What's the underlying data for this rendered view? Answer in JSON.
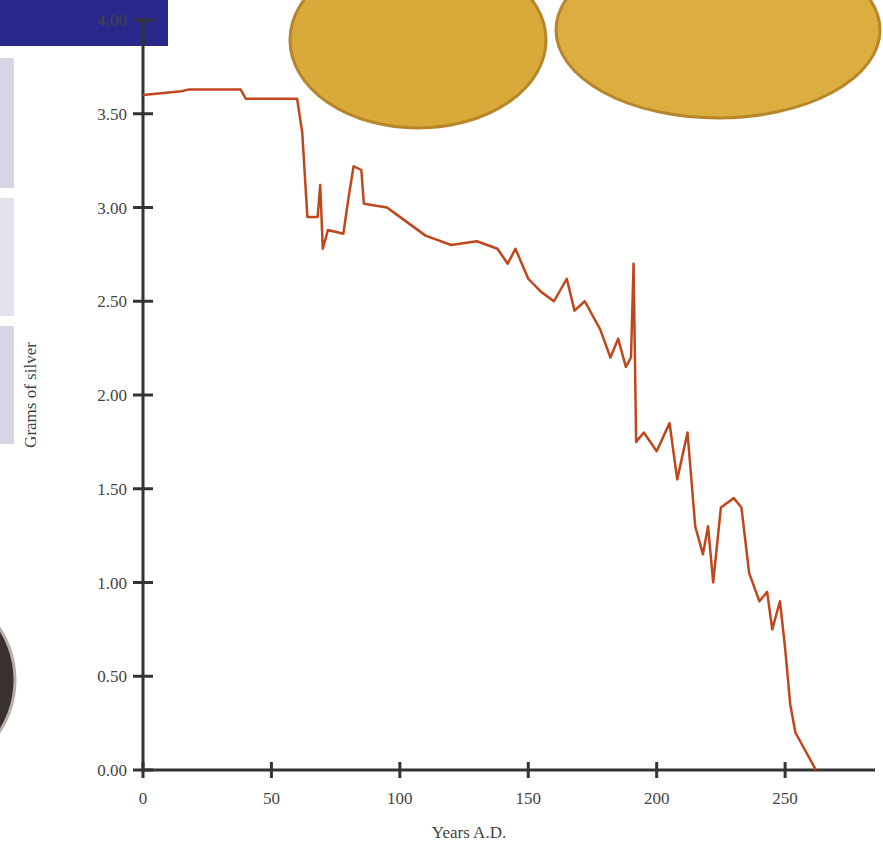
{
  "chart_data": {
    "type": "line",
    "x_label": "Years A.D.",
    "y_label": "Grams of silver",
    "x": [
      0,
      15,
      18,
      38,
      40,
      60,
      62,
      64,
      68,
      69,
      70,
      72,
      78,
      80,
      82,
      85,
      86,
      95,
      100,
      110,
      120,
      130,
      138,
      142,
      145,
      150,
      155,
      160,
      165,
      168,
      172,
      178,
      182,
      185,
      188,
      190,
      191,
      192,
      195,
      200,
      205,
      208,
      212,
      215,
      218,
      220,
      222,
      225,
      230,
      233,
      236,
      240,
      243,
      245,
      248,
      250,
      252,
      254,
      258,
      262
    ],
    "values": [
      3.6,
      3.62,
      3.63,
      3.63,
      3.58,
      3.58,
      3.4,
      2.95,
      2.95,
      3.12,
      2.78,
      2.88,
      2.86,
      3.05,
      3.22,
      3.2,
      3.02,
      3.0,
      2.95,
      2.85,
      2.8,
      2.82,
      2.78,
      2.7,
      2.78,
      2.62,
      2.55,
      2.5,
      2.62,
      2.45,
      2.5,
      2.35,
      2.2,
      2.3,
      2.15,
      2.2,
      2.7,
      1.75,
      1.8,
      1.7,
      1.85,
      1.55,
      1.8,
      1.3,
      1.15,
      1.3,
      1.0,
      1.4,
      1.45,
      1.4,
      1.05,
      0.9,
      0.95,
      0.75,
      0.9,
      0.65,
      0.35,
      0.2,
      0.1,
      0.0
    ],
    "color": "#c0461c",
    "xlim": [
      0,
      285
    ],
    "ylim": [
      0,
      4
    ],
    "xticks": [
      0,
      50,
      100,
      150,
      200,
      250
    ],
    "yticks": [
      {
        "value": 0,
        "label": "0.00"
      },
      {
        "value": 0.5,
        "label": "0.50"
      },
      {
        "value": 1,
        "label": "1.00"
      },
      {
        "value": 1.5,
        "label": "1.50"
      },
      {
        "value": 2,
        "label": "2.00"
      },
      {
        "value": 2.5,
        "label": "2.50"
      },
      {
        "value": 3,
        "label": "3.00"
      },
      {
        "value": 3.5,
        "label": "3.50"
      },
      {
        "value": 4,
        "label": "4.00"
      }
    ],
    "grid": false
  }
}
